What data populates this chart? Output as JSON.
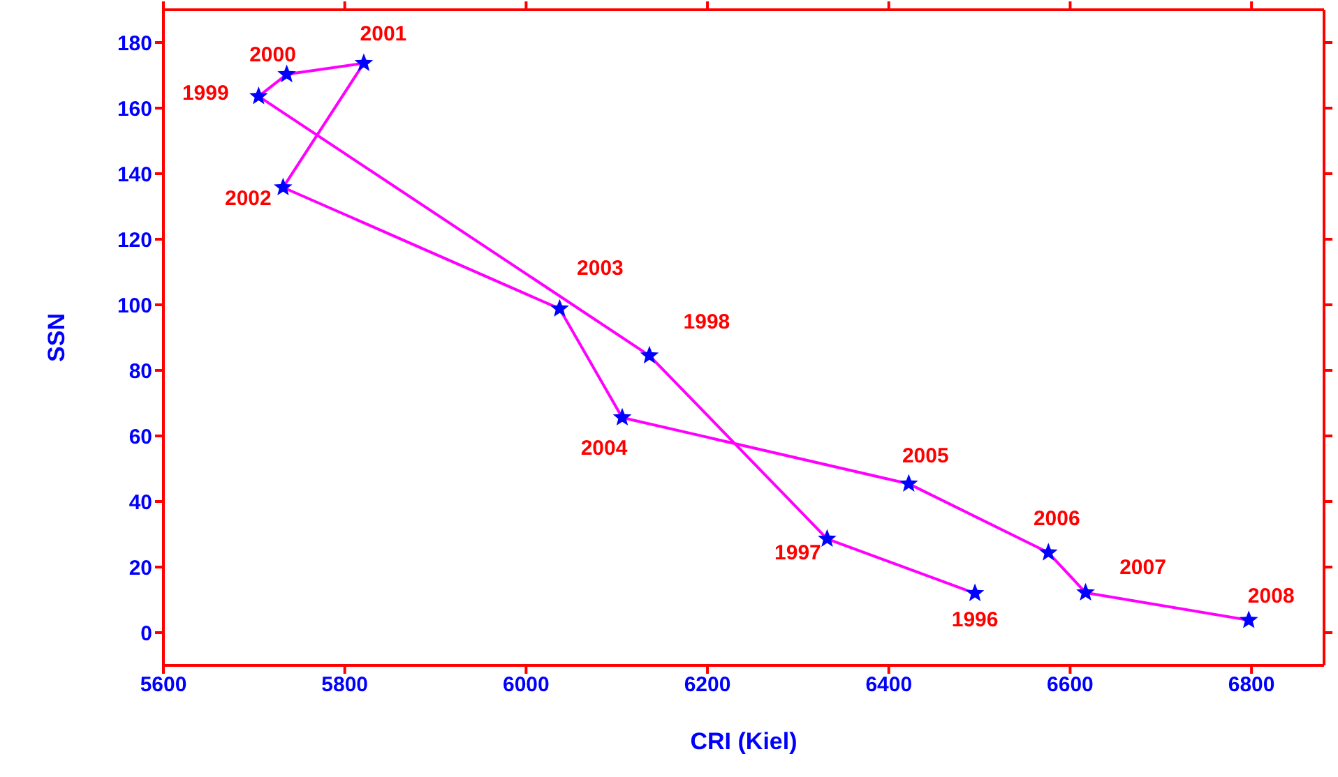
{
  "chart_data": {
    "type": "line",
    "xlabel": "CRI (Kiel)",
    "ylabel": "SSN",
    "x": [
      6495,
      6332,
      6136,
      5705,
      5736,
      5821,
      5732,
      6037,
      6106,
      6422,
      6576,
      6617,
      6797
    ],
    "series": [
      {
        "type": "line",
        "color": "#ff00ff",
        "marker": "none",
        "values": [
          12,
          28.6,
          84.5,
          163.6,
          170.3,
          173.7,
          135.8,
          98.8,
          65.6,
          45.4,
          24.4,
          12.2,
          3.8
        ]
      },
      {
        "type": "scatter",
        "color": "#0000ff",
        "marker": "star",
        "values": [
          12,
          28.6,
          84.5,
          163.6,
          170.3,
          173.7,
          135.8,
          98.8,
          65.6,
          45.4,
          24.4,
          12.2,
          3.8
        ]
      }
    ],
    "xlim": [
      5600,
      6880
    ],
    "xticks": [
      5600,
      5800,
      6000,
      6200,
      6400,
      6600,
      6800
    ],
    "ylim": [
      -10,
      190
    ],
    "yticks": [
      0,
      20,
      40,
      60,
      80,
      100,
      120,
      140,
      160,
      180
    ],
    "grid": false,
    "legend": false,
    "annotations": [
      {
        "text": "1996",
        "x": 6495,
        "y": 12
      },
      {
        "text": "1997",
        "x": 6332,
        "y": 28.6
      },
      {
        "text": "1998",
        "x": 6136,
        "y": 84.5
      },
      {
        "text": "1999",
        "x": 5705,
        "y": 163.6
      },
      {
        "text": "2000",
        "x": 5736,
        "y": 170.3
      },
      {
        "text": "2001",
        "x": 5821,
        "y": 173.7
      },
      {
        "text": "2002",
        "x": 5732,
        "y": 135.8
      },
      {
        "text": "2003",
        "x": 6037,
        "y": 98.8
      },
      {
        "text": "2004",
        "x": 6106,
        "y": 65.6
      },
      {
        "text": "2005",
        "x": 6422,
        "y": 45.4
      },
      {
        "text": "2006",
        "x": 6576,
        "y": 24.4
      },
      {
        "text": "2007",
        "x": 6617,
        "y": 12.2
      },
      {
        "text": "2008",
        "x": 6797,
        "y": 3.8
      }
    ]
  }
}
